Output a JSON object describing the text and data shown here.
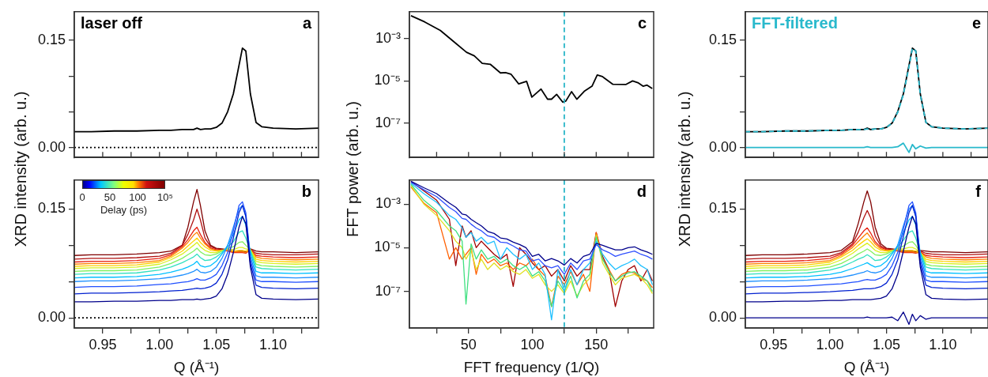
{
  "chart_data": [
    {
      "type": "line",
      "title": "laser off",
      "annotations": [
        "a"
      ],
      "tick_labels": "y",
      "x": [
        0.925,
        0.94,
        0.96,
        0.98,
        1.0,
        1.01,
        1.02,
        1.025,
        1.03,
        1.033,
        1.036,
        1.04,
        1.045,
        1.05,
        1.055,
        1.06,
        1.065,
        1.07,
        1.073,
        1.076,
        1.08,
        1.085,
        1.09,
        1.1,
        1.12,
        1.14
      ],
      "xlim": [
        0.925,
        1.14
      ],
      "xticks": [
        {
          "value": 0.95,
          "label": null
        },
        {
          "value": 0.975,
          "label": null
        },
        {
          "value": 1,
          "label": null
        },
        {
          "value": 1.025,
          "label": null
        },
        {
          "value": 1.05,
          "label": null
        },
        {
          "value": 1.075,
          "label": null
        },
        {
          "value": 1.1,
          "label": null
        },
        {
          "value": 1.125,
          "label": null
        }
      ],
      "ylim": [
        -0.014,
        0.19
      ],
      "yticks": [
        {
          "value": 0,
          "label": "0.00"
        },
        {
          "value": 0.05,
          "label": null
        },
        {
          "value": 0.1,
          "label": null
        },
        {
          "value": 0.15,
          "label": "0.15"
        }
      ],
      "ref_lines": [
        {
          "axis": "y",
          "value": 0,
          "color": "#000000",
          "line_style": "dotted"
        }
      ],
      "series": [
        {
          "color": "#000000",
          "values": [
            0.022,
            0.022,
            0.023,
            0.023,
            0.024,
            0.024,
            0.025,
            0.025,
            0.025,
            0.027,
            0.025,
            0.026,
            0.026,
            0.028,
            0.034,
            0.05,
            0.075,
            0.115,
            0.139,
            0.135,
            0.075,
            0.035,
            0.029,
            0.027,
            0.026,
            0.027
          ]
        }
      ]
    },
    {
      "type": "line",
      "annotations": [
        "b",
        "0",
        "50",
        "100",
        "10⁵"
      ],
      "ylabel": "XRD intensity (arb. u.)",
      "xlabel": "Q (Å⁻¹)",
      "x": [
        0.925,
        0.94,
        0.96,
        0.98,
        1.0,
        1.01,
        1.02,
        1.025,
        1.03,
        1.033,
        1.036,
        1.04,
        1.045,
        1.05,
        1.055,
        1.06,
        1.065,
        1.07,
        1.073,
        1.076,
        1.08,
        1.085,
        1.09,
        1.1,
        1.12,
        1.14
      ],
      "xlim": [
        0.925,
        1.14
      ],
      "xticks": [
        {
          "value": 0.95,
          "label": "0.95"
        },
        {
          "value": 0.975,
          "label": null
        },
        {
          "value": 1,
          "label": "1.00"
        },
        {
          "value": 1.025,
          "label": null
        },
        {
          "value": 1.05,
          "label": "1.05"
        },
        {
          "value": 1.075,
          "label": null
        },
        {
          "value": 1.1,
          "label": "1.10"
        },
        {
          "value": 1.125,
          "label": null
        }
      ],
      "ylim": [
        -0.014,
        0.19
      ],
      "yticks": [
        {
          "value": 0,
          "label": "0.00"
        },
        {
          "value": 0.05,
          "label": null
        },
        {
          "value": 0.1,
          "label": null
        },
        {
          "value": 0.15,
          "label": "0.15"
        }
      ],
      "ref_lines": [
        {
          "axis": "y",
          "value": 0,
          "color": "#000000",
          "line_style": "dotted"
        }
      ],
      "clabel": "Delay (ps)",
      "series": [
        {
          "color": "#800000",
          "values": [
            0.086,
            0.087,
            0.087,
            0.088,
            0.09,
            0.092,
            0.1,
            0.125,
            0.16,
            0.177,
            0.155,
            0.12,
            0.1,
            0.096,
            0.095,
            0.094,
            0.092,
            0.092,
            0.092,
            0.091,
            0.095,
            0.092,
            0.091,
            0.091,
            0.09,
            0.091
          ]
        },
        {
          "color": "#b01010",
          "values": [
            0.081,
            0.082,
            0.082,
            0.083,
            0.085,
            0.089,
            0.1,
            0.115,
            0.135,
            0.15,
            0.135,
            0.11,
            0.098,
            0.095,
            0.094,
            0.093,
            0.091,
            0.091,
            0.091,
            0.09,
            0.094,
            0.089,
            0.088,
            0.087,
            0.087,
            0.088
          ]
        },
        {
          "color": "#e82010",
          "values": [
            0.077,
            0.078,
            0.078,
            0.079,
            0.082,
            0.087,
            0.098,
            0.108,
            0.12,
            0.125,
            0.115,
            0.104,
            0.096,
            0.094,
            0.093,
            0.092,
            0.09,
            0.09,
            0.09,
            0.089,
            0.094,
            0.086,
            0.085,
            0.084,
            0.083,
            0.084
          ]
        },
        {
          "color": "#ff8000",
          "values": [
            0.074,
            0.075,
            0.075,
            0.076,
            0.079,
            0.085,
            0.096,
            0.104,
            0.114,
            0.118,
            0.11,
            0.102,
            0.095,
            0.093,
            0.093,
            0.093,
            0.091,
            0.091,
            0.091,
            0.09,
            0.094,
            0.084,
            0.082,
            0.081,
            0.08,
            0.081
          ]
        },
        {
          "color": "#ffd000",
          "values": [
            0.071,
            0.072,
            0.072,
            0.073,
            0.077,
            0.083,
            0.092,
            0.099,
            0.106,
            0.11,
            0.104,
            0.098,
            0.093,
            0.092,
            0.093,
            0.094,
            0.092,
            0.093,
            0.093,
            0.092,
            0.094,
            0.081,
            0.079,
            0.078,
            0.077,
            0.078
          ]
        },
        {
          "color": "#d8f020",
          "values": [
            0.068,
            0.069,
            0.069,
            0.07,
            0.074,
            0.08,
            0.088,
            0.094,
            0.1,
            0.104,
            0.098,
            0.093,
            0.09,
            0.09,
            0.093,
            0.095,
            0.094,
            0.097,
            0.097,
            0.095,
            0.094,
            0.078,
            0.076,
            0.075,
            0.074,
            0.075
          ]
        },
        {
          "color": "#80f060",
          "values": [
            0.064,
            0.065,
            0.065,
            0.066,
            0.07,
            0.075,
            0.082,
            0.087,
            0.092,
            0.096,
            0.091,
            0.087,
            0.086,
            0.088,
            0.092,
            0.096,
            0.098,
            0.104,
            0.105,
            0.1,
            0.094,
            0.074,
            0.072,
            0.071,
            0.07,
            0.071
          ]
        },
        {
          "color": "#30e0c0",
          "values": [
            0.06,
            0.061,
            0.061,
            0.062,
            0.066,
            0.07,
            0.076,
            0.08,
            0.084,
            0.088,
            0.083,
            0.079,
            0.08,
            0.084,
            0.09,
            0.098,
            0.105,
            0.118,
            0.12,
            0.11,
            0.092,
            0.07,
            0.068,
            0.067,
            0.066,
            0.067
          ]
        },
        {
          "color": "#00c0ff",
          "values": [
            0.055,
            0.056,
            0.056,
            0.057,
            0.06,
            0.063,
            0.067,
            0.07,
            0.074,
            0.078,
            0.072,
            0.07,
            0.072,
            0.078,
            0.088,
            0.1,
            0.115,
            0.135,
            0.14,
            0.128,
            0.09,
            0.064,
            0.062,
            0.062,
            0.061,
            0.062
          ]
        },
        {
          "color": "#1e90ff",
          "values": [
            0.05,
            0.051,
            0.051,
            0.052,
            0.054,
            0.056,
            0.059,
            0.061,
            0.064,
            0.067,
            0.063,
            0.062,
            0.064,
            0.07,
            0.082,
            0.1,
            0.125,
            0.15,
            0.155,
            0.14,
            0.085,
            0.058,
            0.056,
            0.056,
            0.055,
            0.056
          ]
        },
        {
          "color": "#2050ff",
          "values": [
            0.042,
            0.043,
            0.043,
            0.044,
            0.046,
            0.047,
            0.049,
            0.05,
            0.052,
            0.054,
            0.052,
            0.052,
            0.055,
            0.06,
            0.072,
            0.09,
            0.12,
            0.155,
            0.16,
            0.145,
            0.08,
            0.052,
            0.05,
            0.05,
            0.049,
            0.05
          ]
        },
        {
          "color": "#0020d0",
          "values": [
            0.033,
            0.034,
            0.034,
            0.035,
            0.036,
            0.037,
            0.038,
            0.039,
            0.04,
            0.041,
            0.04,
            0.041,
            0.043,
            0.048,
            0.06,
            0.08,
            0.11,
            0.145,
            0.155,
            0.14,
            0.075,
            0.045,
            0.042,
            0.041,
            0.04,
            0.041
          ]
        },
        {
          "color": "#00008b",
          "values": [
            0.022,
            0.022,
            0.023,
            0.023,
            0.024,
            0.024,
            0.025,
            0.025,
            0.025,
            0.026,
            0.025,
            0.026,
            0.027,
            0.03,
            0.04,
            0.06,
            0.09,
            0.125,
            0.14,
            0.13,
            0.07,
            0.032,
            0.027,
            0.026,
            0.025,
            0.026
          ]
        }
      ]
    },
    {
      "type": "line",
      "annotations": [
        "c"
      ],
      "tick_labels": "y",
      "log": true,
      "x": [
        4.9,
        15.6,
        27.9,
        38.1,
        48.4,
        54.5,
        60.7,
        67,
        75,
        79,
        83.2,
        89.3,
        95.5,
        99.6,
        106.8,
        111.9,
        115,
        119,
        123.8,
        126.2,
        130.7,
        134.8,
        140.6,
        146.7,
        150.8,
        154.9,
        163.1,
        173.4,
        178.5,
        182.6,
        186.7,
        189.8,
        193.9
      ],
      "xlim": [
        3.7,
        195
      ],
      "xticks": [
        {
          "value": 25,
          "label": null
        },
        {
          "value": 50,
          "label": null
        },
        {
          "value": 75,
          "label": null
        },
        {
          "value": 100,
          "label": null
        },
        {
          "value": 125,
          "label": null
        },
        {
          "value": 150,
          "label": null
        },
        {
          "value": 175,
          "label": null
        }
      ],
      "ylim": [
        2.3e-09,
        0.0195
      ],
      "yticks": [
        {
          "value": 1e-07,
          "label": "10⁻⁷"
        },
        {
          "value": 1e-05,
          "label": "10⁻⁵"
        },
        {
          "value": 0.001,
          "label": "10⁻³"
        }
      ],
      "ref_lines": [
        {
          "axis": "x",
          "value": 125,
          "color": "#29b6c8",
          "line_style": "dashed"
        }
      ],
      "series": [
        {
          "color": "#000000",
          "values": [
            0.0126,
            0.0064,
            0.0025,
            0.00076,
            0.00023,
            0.000155,
            6.9e-05,
            6.2e-05,
            2.4e-05,
            2.5e-05,
            2.1e-05,
            7.2e-06,
            9.5e-06,
            1.7e-06,
            4.1e-06,
            1.35e-06,
            1.35e-06,
            2.3e-06,
            9.8e-07,
            1.1e-06,
            3.1e-06,
            1.35e-06,
            3.2e-06,
            5.6e-06,
            1.9e-05,
            1.6e-05,
            6.9e-06,
            6.8e-06,
            1e-05,
            8.3e-06,
            5.6e-06,
            6.3e-06,
            4.3e-06
          ]
        }
      ]
    },
    {
      "type": "line",
      "annotations": [
        "d"
      ],
      "ylabel": "FFT power (arb. u.)",
      "xlabel": "FFT frequency (1/Q)",
      "log": true,
      "x": [
        4.9,
        15,
        25,
        35,
        40,
        45,
        48,
        52,
        56,
        60,
        65,
        70,
        75,
        80,
        85,
        90,
        95,
        100,
        105,
        110,
        115,
        120,
        125,
        130,
        135,
        140,
        145,
        150,
        155,
        160,
        165,
        170,
        175,
        180,
        185,
        190,
        194
      ],
      "xlim": [
        3.7,
        195
      ],
      "xticks": [
        {
          "value": 25,
          "label": null
        },
        50,
        {
          "value": 75,
          "label": null
        },
        100,
        {
          "value": 125,
          "label": null
        },
        150,
        {
          "value": 175,
          "label": null
        }
      ],
      "ylim": [
        2.1e-09,
        0.0126
      ],
      "yticks": [
        {
          "value": 1e-07,
          "label": "10⁻⁷"
        },
        {
          "value": 1e-05,
          "label": "10⁻⁵"
        },
        {
          "value": 0.001,
          "label": "10⁻³"
        }
      ],
      "ref_lines": [
        {
          "axis": "x",
          "value": 125,
          "color": "#29b6c8",
          "line_style": "dashed"
        }
      ],
      "series": [
        {
          "color": "#a00000",
          "values": [
            0.011,
            0.004,
            0.0015,
            0.0002,
            1.5e-06,
            0.0001,
            3e-05,
            6e-05,
            1e-05,
            2e-05,
            1e-05,
            5e-06,
            3e-06,
            5e-06,
            1.7e-07,
            1e-05,
            5e-06,
            2e-06,
            1e-06,
            1.5e-06,
            5e-07,
            1e-06,
            3e-07,
            1.5e-06,
            5e-07,
            1e-06,
            1e-06,
            5e-05,
            4e-06,
            1e-06,
            2e-08,
            3e-07,
            1e-06,
            1.5e-06,
            3e-07,
            1e-06,
            3e-07
          ]
        },
        {
          "color": "#ff6000",
          "values": [
            0.006,
            0.0011,
            0.0004,
            3e-06,
            1e-05,
            3e-06,
            5e-06,
            1e-05,
            6e-07,
            5e-06,
            2e-06,
            3e-06,
            1.5e-06,
            2e-06,
            1e-06,
            2e-06,
            1.5e-06,
            3e-06,
            1e-06,
            5e-07,
            2e-08,
            5e-07,
            2e-07,
            8e-07,
            2e-07,
            6e-07,
            1e-07,
            5e-05,
            3e-06,
            1e-06,
            3e-07,
            6e-07,
            8e-07,
            7e-07,
            4e-07,
            3e-07,
            1.5e-07
          ]
        },
        {
          "color": "#e0e020",
          "values": [
            0.007,
            0.001,
            0.0003,
            6e-05,
            2e-05,
            1e-05,
            3e-06,
            8e-06,
            1e-06,
            3e-06,
            1e-06,
            2e-06,
            1e-06,
            1.5e-06,
            8e-07,
            6e-07,
            1e-06,
            4e-07,
            6e-07,
            2e-07,
            1e-07,
            2e-07,
            8e-08,
            3e-07,
            6e-08,
            2e-07,
            4e-07,
            4e-05,
            2e-06,
            6e-07,
            2e-07,
            4e-07,
            5e-07,
            6e-07,
            4e-07,
            2e-07,
            8e-08
          ]
        },
        {
          "color": "#40e080",
          "values": [
            0.008,
            0.0015,
            0.0005,
            0.0001,
            6e-05,
            2e-05,
            2.6e-08,
            1.5e-05,
            3e-06,
            8e-06,
            3e-06,
            4e-06,
            2e-06,
            3e-06,
            1.5e-06,
            1e-06,
            1.5e-06,
            5e-07,
            8e-07,
            3e-07,
            2e-08,
            3e-07,
            1e-07,
            5e-07,
            5e-08,
            3e-07,
            6e-07,
            3e-05,
            3e-06,
            8e-07,
            3e-07,
            5e-07,
            7e-07,
            8e-07,
            5e-07,
            3e-07,
            1e-07
          ]
        },
        {
          "color": "#20c0ff",
          "values": [
            0.009,
            0.003,
            0.0012,
            0.0003,
            0.0002,
            8e-05,
            3e-05,
            5e-05,
            2e-05,
            3e-05,
            1.5e-05,
            2e-05,
            3e-06,
            1e-05,
            5e-06,
            3e-06,
            5e-06,
            1e-06,
            2e-06,
            6e-07,
            5e-09,
            1e-06,
            1e-07,
            1e-06,
            2e-07,
            1e-06,
            2e-06,
            2e-05,
            5e-06,
            2e-06,
            1e-06,
            1.5e-06,
            2e-06,
            3e-06,
            1.5e-06,
            1e-06,
            2e-07
          ]
        },
        {
          "color": "#3050ff",
          "values": [
            0.01,
            0.0045,
            0.0022,
            0.0007,
            0.00045,
            0.00022,
            0.0002,
            0.00012,
            8e-05,
            6e-05,
            3.5e-05,
            3e-05,
            1.8e-05,
            1.7e-05,
            1.2e-05,
            8e-06,
            7e-06,
            2.5e-06,
            3e-06,
            1.5e-06,
            1.2e-06,
            1.5e-06,
            6e-07,
            2e-06,
            1e-06,
            2.5e-06,
            3e-06,
            1.4e-05,
            8e-06,
            6e-06,
            4e-06,
            5e-06,
            6e-06,
            7e-06,
            5e-06,
            4e-06,
            3e-06
          ]
        },
        {
          "color": "#00008b",
          "values": [
            0.011,
            0.0056,
            0.003,
            0.0011,
            0.00071,
            0.00035,
            0.00032,
            0.0002,
            0.00014,
            0.0001,
            5.6e-05,
            4.5e-05,
            2.8e-05,
            2.5e-05,
            1.8e-05,
            1.4e-05,
            1e-05,
            4e-06,
            5e-06,
            2.5e-06,
            3.2e-06,
            2.5e-06,
            1.6e-06,
            3.2e-06,
            2e-06,
            4e-06,
            5e-06,
            1.6e-05,
            1.3e-05,
            1e-05,
            8e-06,
            8e-06,
            1e-05,
            1.1e-05,
            8e-06,
            6.3e-06,
            5e-06
          ]
        }
      ]
    },
    {
      "type": "line",
      "title": "FFT-filtered",
      "annotations": [
        "e"
      ],
      "tick_labels": "y",
      "x": [
        0.925,
        0.94,
        0.96,
        0.98,
        1.0,
        1.01,
        1.02,
        1.025,
        1.03,
        1.033,
        1.036,
        1.04,
        1.045,
        1.05,
        1.055,
        1.06,
        1.065,
        1.07,
        1.073,
        1.076,
        1.08,
        1.085,
        1.09,
        1.1,
        1.12,
        1.14
      ],
      "xlim": [
        0.925,
        1.14
      ],
      "xticks": [
        {
          "value": 0.95,
          "label": null
        },
        {
          "value": 0.975,
          "label": null
        },
        {
          "value": 1,
          "label": null
        },
        {
          "value": 1.025,
          "label": null
        },
        {
          "value": 1.05,
          "label": null
        },
        {
          "value": 1.075,
          "label": null
        },
        {
          "value": 1.1,
          "label": null
        },
        {
          "value": 1.125,
          "label": null
        }
      ],
      "ylim": [
        -0.014,
        0.19
      ],
      "yticks": [
        {
          "value": 0,
          "label": "0.00"
        },
        {
          "value": 0.05,
          "label": null
        },
        {
          "value": 0.1,
          "label": null
        },
        {
          "value": 0.15,
          "label": "0.15"
        }
      ],
      "series": [
        {
          "color": "#000000",
          "values": [
            0.022,
            0.022,
            0.023,
            0.023,
            0.024,
            0.024,
            0.025,
            0.025,
            0.025,
            0.027,
            0.025,
            0.026,
            0.026,
            0.028,
            0.034,
            0.05,
            0.075,
            0.115,
            0.139,
            0.135,
            0.075,
            0.035,
            0.029,
            0.027,
            0.026,
            0.027
          ]
        },
        {
          "color": "#29b9cc",
          "line_style": "dashed",
          "values": [
            0.022,
            0.022,
            0.023,
            0.023,
            0.024,
            0.024,
            0.025,
            0.025,
            0.025,
            0.026,
            0.025,
            0.026,
            0.026,
            0.028,
            0.034,
            0.049,
            0.074,
            0.113,
            0.139,
            0.135,
            0.074,
            0.035,
            0.029,
            0.027,
            0.026,
            0.027
          ]
        },
        {
          "color": "#29b9cc",
          "values": [
            0,
            0,
            0,
            0,
            0,
            0,
            0,
            0,
            0,
            0.001,
            0,
            0,
            0,
            0,
            0,
            0.001,
            0.006,
            -0.007,
            0.004,
            -0.002,
            0.002,
            -0.001,
            0,
            0,
            0,
            0
          ]
        }
      ]
    },
    {
      "type": "line",
      "annotations": [
        "f"
      ],
      "ylabel": "XRD intensity (arb. u.)",
      "xlabel": "Q (Å⁻¹)",
      "x": [
        0.925,
        0.94,
        0.96,
        0.98,
        1.0,
        1.01,
        1.02,
        1.025,
        1.03,
        1.033,
        1.036,
        1.04,
        1.045,
        1.05,
        1.055,
        1.06,
        1.065,
        1.07,
        1.073,
        1.076,
        1.08,
        1.085,
        1.09,
        1.1,
        1.12,
        1.14
      ],
      "xlim": [
        0.925,
        1.14
      ],
      "xticks": [
        {
          "value": 0.95,
          "label": "0.95"
        },
        {
          "value": 0.975,
          "label": null
        },
        {
          "value": 1,
          "label": "1.00"
        },
        {
          "value": 1.025,
          "label": null
        },
        {
          "value": 1.05,
          "label": "1.05"
        },
        {
          "value": 1.075,
          "label": null
        },
        {
          "value": 1.1,
          "label": "1.10"
        },
        {
          "value": 1.125,
          "label": null
        }
      ],
      "ylim": [
        -0.014,
        0.19
      ],
      "yticks": [
        {
          "value": 0,
          "label": "0.00"
        },
        {
          "value": 0.05,
          "label": null
        },
        {
          "value": 0.1,
          "label": null
        },
        {
          "value": 0.15,
          "label": "0.15"
        }
      ],
      "series": [
        {
          "color": "#800000",
          "values": [
            0.086,
            0.087,
            0.087,
            0.088,
            0.09,
            0.093,
            0.105,
            0.13,
            0.16,
            0.175,
            0.16,
            0.125,
            0.102,
            0.096,
            0.095,
            0.094,
            0.092,
            0.092,
            0.092,
            0.091,
            0.093,
            0.092,
            0.091,
            0.091,
            0.09,
            0.091
          ]
        },
        {
          "color": "#b01010",
          "values": [
            0.081,
            0.082,
            0.082,
            0.083,
            0.085,
            0.09,
            0.102,
            0.118,
            0.138,
            0.148,
            0.138,
            0.113,
            0.099,
            0.095,
            0.094,
            0.093,
            0.091,
            0.091,
            0.091,
            0.09,
            0.092,
            0.089,
            0.088,
            0.087,
            0.087,
            0.088
          ]
        },
        {
          "color": "#e82010",
          "values": [
            0.077,
            0.078,
            0.078,
            0.079,
            0.082,
            0.088,
            0.1,
            0.11,
            0.12,
            0.124,
            0.117,
            0.105,
            0.097,
            0.094,
            0.093,
            0.092,
            0.09,
            0.09,
            0.09,
            0.089,
            0.091,
            0.086,
            0.085,
            0.084,
            0.083,
            0.084
          ]
        },
        {
          "color": "#ff8000",
          "values": [
            0.074,
            0.075,
            0.075,
            0.076,
            0.079,
            0.086,
            0.097,
            0.105,
            0.113,
            0.117,
            0.111,
            0.102,
            0.095,
            0.093,
            0.093,
            0.093,
            0.091,
            0.091,
            0.091,
            0.09,
            0.09,
            0.084,
            0.082,
            0.081,
            0.08,
            0.081
          ]
        },
        {
          "color": "#ffd000",
          "values": [
            0.071,
            0.072,
            0.072,
            0.073,
            0.077,
            0.084,
            0.093,
            0.1,
            0.106,
            0.109,
            0.105,
            0.098,
            0.093,
            0.092,
            0.093,
            0.094,
            0.093,
            0.093,
            0.093,
            0.092,
            0.09,
            0.081,
            0.079,
            0.078,
            0.077,
            0.078
          ]
        },
        {
          "color": "#d8f020",
          "values": [
            0.068,
            0.069,
            0.069,
            0.07,
            0.074,
            0.08,
            0.089,
            0.095,
            0.1,
            0.103,
            0.099,
            0.093,
            0.09,
            0.09,
            0.093,
            0.095,
            0.095,
            0.097,
            0.097,
            0.095,
            0.09,
            0.078,
            0.076,
            0.075,
            0.074,
            0.075
          ]
        },
        {
          "color": "#80f060",
          "values": [
            0.064,
            0.065,
            0.065,
            0.066,
            0.07,
            0.075,
            0.083,
            0.088,
            0.092,
            0.095,
            0.092,
            0.087,
            0.086,
            0.088,
            0.092,
            0.096,
            0.099,
            0.104,
            0.105,
            0.1,
            0.09,
            0.074,
            0.072,
            0.071,
            0.07,
            0.071
          ]
        },
        {
          "color": "#30e0c0",
          "values": [
            0.06,
            0.061,
            0.061,
            0.062,
            0.066,
            0.07,
            0.077,
            0.081,
            0.084,
            0.087,
            0.084,
            0.079,
            0.08,
            0.084,
            0.09,
            0.098,
            0.107,
            0.118,
            0.12,
            0.11,
            0.09,
            0.07,
            0.068,
            0.067,
            0.066,
            0.067
          ]
        },
        {
          "color": "#00c0ff",
          "values": [
            0.055,
            0.056,
            0.056,
            0.057,
            0.06,
            0.063,
            0.068,
            0.071,
            0.074,
            0.076,
            0.073,
            0.07,
            0.072,
            0.078,
            0.088,
            0.1,
            0.117,
            0.135,
            0.14,
            0.128,
            0.09,
            0.064,
            0.062,
            0.062,
            0.061,
            0.062
          ]
        },
        {
          "color": "#1e90ff",
          "values": [
            0.05,
            0.051,
            0.051,
            0.052,
            0.054,
            0.056,
            0.059,
            0.061,
            0.063,
            0.065,
            0.063,
            0.062,
            0.064,
            0.07,
            0.082,
            0.1,
            0.127,
            0.15,
            0.155,
            0.14,
            0.085,
            0.058,
            0.056,
            0.056,
            0.055,
            0.056
          ]
        },
        {
          "color": "#2050ff",
          "values": [
            0.042,
            0.043,
            0.043,
            0.044,
            0.046,
            0.047,
            0.049,
            0.05,
            0.052,
            0.053,
            0.052,
            0.052,
            0.055,
            0.06,
            0.072,
            0.09,
            0.122,
            0.155,
            0.16,
            0.145,
            0.08,
            0.052,
            0.05,
            0.05,
            0.049,
            0.05
          ]
        },
        {
          "color": "#0020d0",
          "values": [
            0.033,
            0.034,
            0.034,
            0.035,
            0.036,
            0.037,
            0.038,
            0.039,
            0.04,
            0.04,
            0.04,
            0.041,
            0.043,
            0.048,
            0.06,
            0.08,
            0.112,
            0.145,
            0.155,
            0.14,
            0.075,
            0.045,
            0.042,
            0.041,
            0.04,
            0.041
          ]
        },
        {
          "color": "#00008b",
          "values": [
            0.022,
            0.022,
            0.023,
            0.023,
            0.024,
            0.024,
            0.025,
            0.025,
            0.025,
            0.025,
            0.025,
            0.026,
            0.027,
            0.03,
            0.04,
            0.06,
            0.092,
            0.125,
            0.14,
            0.13,
            0.07,
            0.032,
            0.027,
            0.026,
            0.025,
            0.026
          ]
        },
        {
          "color": "#00008b",
          "values": [
            0,
            0,
            0,
            0,
            0,
            0,
            0,
            0,
            0,
            0.001,
            0,
            0,
            0,
            0,
            0.001,
            -0.004,
            0.008,
            -0.009,
            0.005,
            -0.004,
            0.003,
            -0.002,
            0,
            0,
            0,
            0
          ]
        }
      ]
    }
  ]
}
